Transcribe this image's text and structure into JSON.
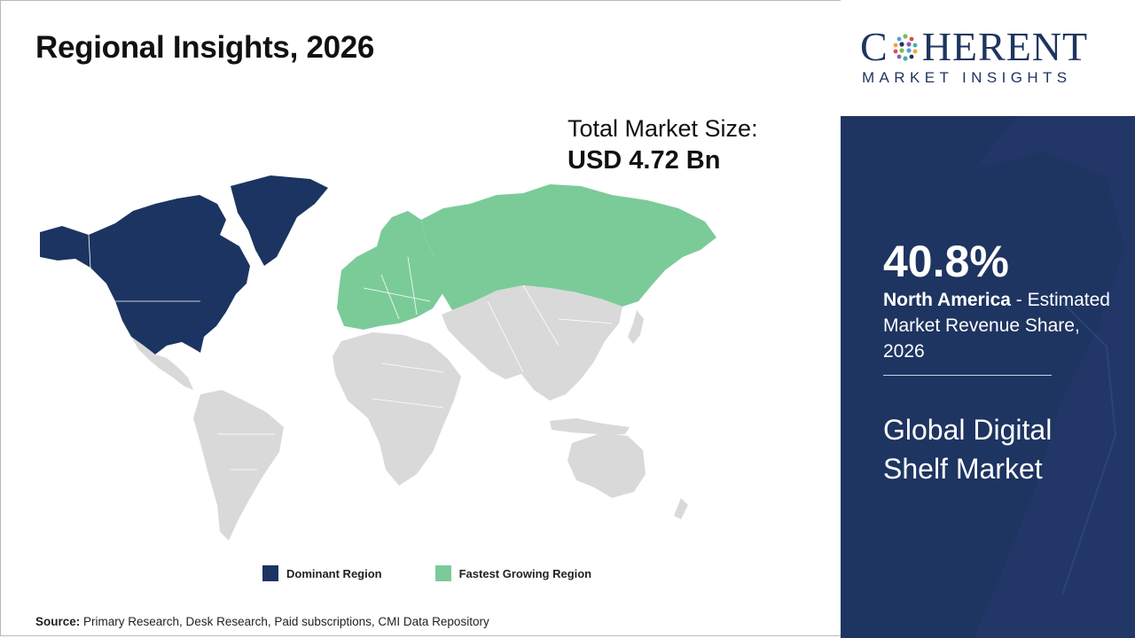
{
  "slide": {
    "title": "Regional Insights, 2026",
    "market_size_label": "Total Market Size:",
    "market_size_value": "USD 4.72 Bn"
  },
  "legend": {
    "dominant": {
      "label": "Dominant Region",
      "color": "#1c3461"
    },
    "fastest": {
      "label": "Fastest Growing Region",
      "color": "#7bcb99"
    }
  },
  "map": {
    "other_color": "#d9d9d9",
    "dominant_regions": [
      "North America",
      "Greenland"
    ],
    "fastest_growing_regions": [
      "Europe",
      "Russia"
    ]
  },
  "source": {
    "label": "Source:",
    "text": "Primary Research, Desk Research, Paid subscriptions, CMI Data Repository"
  },
  "logo": {
    "top_left": "C",
    "top_right": "HERENT",
    "bottom": "MARKET INSIGHTS"
  },
  "panel": {
    "share_percent": "40.8%",
    "region": "North America",
    "share_desc": " - Estimated Market Revenue Share, 2026",
    "market_name": "Global Digital Shelf Market",
    "bg_color": "#1e3461"
  }
}
